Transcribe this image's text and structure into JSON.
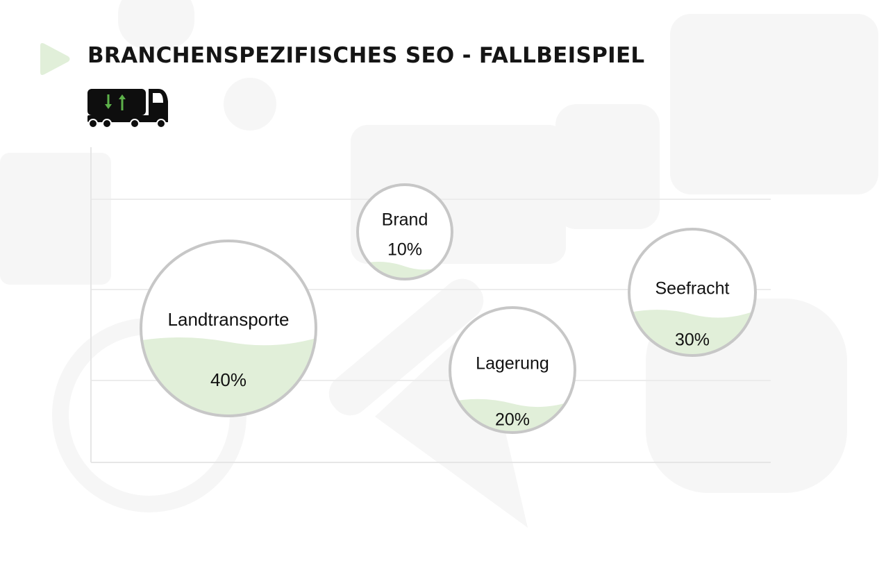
{
  "header": {
    "title": "BRANCHENSPEZIFISCHES SEO - FALLBEISPIEL"
  },
  "icons": {
    "accent": "play-triangle-icon",
    "truck": "truck-icon",
    "truck_arrows": "up-down-arrows-icon"
  },
  "colors": {
    "accent_green": "#e1efd9",
    "arrow_green": "#5db14a",
    "bubble_fill": "#e1efd9",
    "bubble_border": "#c7c7c7",
    "text": "#151515"
  },
  "chart_data": {
    "type": "bubble",
    "title": "",
    "xlabel": "",
    "ylabel": "",
    "grid": true,
    "legend": "none",
    "series": [
      {
        "name": "Landtransporte",
        "value": 40,
        "label": "40%"
      },
      {
        "name": "Brand",
        "value": 10,
        "label": "10%"
      },
      {
        "name": "Lagerung",
        "value": 20,
        "label": "20%"
      },
      {
        "name": "Seefracht",
        "value": 30,
        "label": "30%"
      }
    ]
  }
}
